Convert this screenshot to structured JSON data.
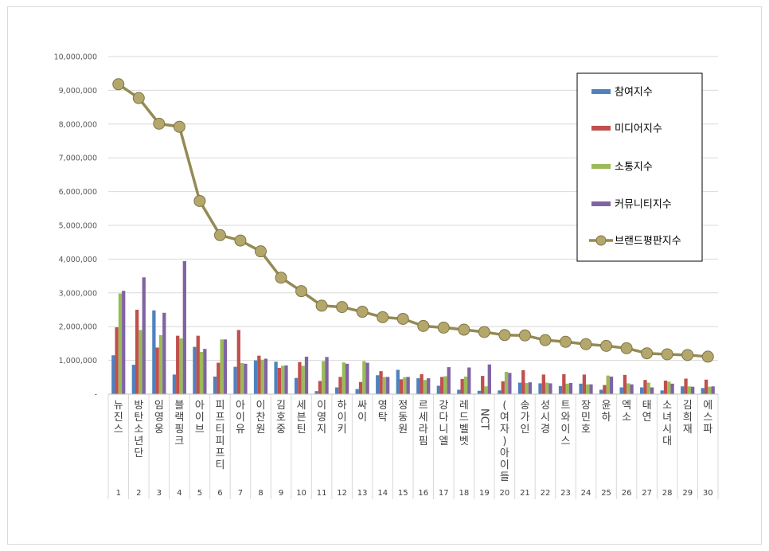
{
  "chart_data": {
    "type": "bar+line",
    "title": "",
    "xlabel": "",
    "ylabel": "",
    "ylim": [
      0,
      10000000
    ],
    "yticks": [
      0,
      1000000,
      2000000,
      3000000,
      4000000,
      5000000,
      6000000,
      7000000,
      8000000,
      9000000,
      10000000
    ],
    "ytick_labels": [
      "-",
      "1,000,000",
      "2,000,000",
      "3,000,000",
      "4,000,000",
      "5,000,000",
      "6,000,000",
      "7,000,000",
      "8,000,000",
      "9,000,000",
      "10,000,000"
    ],
    "grid": true,
    "legend_position": "top-right",
    "ranks": [
      "1",
      "2",
      "3",
      "4",
      "5",
      "6",
      "7",
      "8",
      "9",
      "10",
      "11",
      "12",
      "13",
      "14",
      "15",
      "16",
      "17",
      "18",
      "19",
      "20",
      "21",
      "22",
      "23",
      "24",
      "25",
      "26",
      "27",
      "28",
      "29",
      "30"
    ],
    "categories": [
      "뉴진스",
      "방탄소년단",
      "임영웅",
      "블랙핑크",
      "아이브",
      "피프티피프티",
      "아이유",
      "이찬원",
      "김호중",
      "세븐틴",
      "이영지",
      "하이키",
      "싸이",
      "영탁",
      "정동원",
      "르세라핌",
      "강다니엘",
      "레드벨벳",
      "NCT",
      "(여자)아이들",
      "송가인",
      "성시경",
      "트와이스",
      "장민호",
      "윤하",
      "엑소",
      "태연",
      "소녀시대",
      "김희재",
      "에스파"
    ],
    "series": [
      {
        "name": "참여지수",
        "kind": "bar",
        "color": "#4f81bd",
        "values": [
          1150000,
          870000,
          2480000,
          580000,
          1400000,
          520000,
          810000,
          1000000,
          960000,
          480000,
          90000,
          200000,
          150000,
          560000,
          720000,
          470000,
          250000,
          130000,
          100000,
          110000,
          340000,
          320000,
          240000,
          310000,
          130000,
          200000,
          200000,
          110000,
          230000,
          180000
        ]
      },
      {
        "name": "미디어지수",
        "kind": "bar",
        "color": "#c0504d",
        "values": [
          1980000,
          2500000,
          1380000,
          1730000,
          1730000,
          930000,
          1900000,
          1140000,
          780000,
          950000,
          390000,
          510000,
          360000,
          680000,
          440000,
          590000,
          510000,
          450000,
          540000,
          380000,
          710000,
          580000,
          590000,
          580000,
          270000,
          570000,
          420000,
          400000,
          460000,
          430000
        ]
      },
      {
        "name": "소통지수",
        "kind": "bar",
        "color": "#9bbb59",
        "values": [
          2980000,
          1900000,
          1750000,
          1650000,
          1250000,
          1620000,
          920000,
          1020000,
          840000,
          840000,
          980000,
          940000,
          980000,
          510000,
          500000,
          420000,
          530000,
          520000,
          230000,
          660000,
          330000,
          340000,
          310000,
          290000,
          550000,
          320000,
          340000,
          370000,
          230000,
          220000
        ]
      },
      {
        "name": "커뮤니티지수",
        "kind": "bar",
        "color": "#8064a2",
        "values": [
          3060000,
          3460000,
          2410000,
          3940000,
          1340000,
          1620000,
          900000,
          1050000,
          850000,
          1110000,
          1100000,
          900000,
          930000,
          510000,
          510000,
          470000,
          800000,
          790000,
          880000,
          630000,
          350000,
          320000,
          330000,
          290000,
          520000,
          290000,
          200000,
          310000,
          220000,
          230000
        ]
      },
      {
        "name": "브랜드평판지수",
        "kind": "line",
        "color": "#948a54",
        "marker_color": "#b4a76c",
        "values": [
          9180000,
          8770000,
          8010000,
          7920000,
          5720000,
          4710000,
          4550000,
          4230000,
          3450000,
          3050000,
          2620000,
          2580000,
          2440000,
          2280000,
          2230000,
          2020000,
          1970000,
          1910000,
          1840000,
          1750000,
          1740000,
          1600000,
          1550000,
          1480000,
          1430000,
          1360000,
          1210000,
          1180000,
          1160000,
          1110000
        ]
      }
    ]
  }
}
